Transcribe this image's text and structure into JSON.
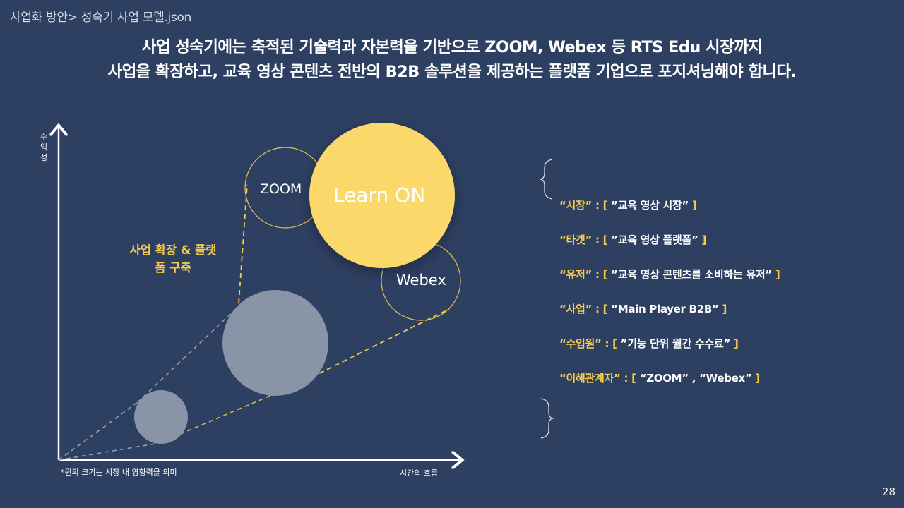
{
  "breadcrumb": "사업화 방안> 성숙기 사업 모델.json",
  "headline": {
    "line1": "사업 성숙기에는 축적된 기술력과 자본력을 기반으로 ZOOM, Webex 등 RTS Edu 시장까지",
    "line2": "사업을 확장하고, 교육 영상 콘텐츠 전반의 B2B 솔루션을 제공하는 플랫폼 기업으로 포지셔닝해야 합니다."
  },
  "chart": {
    "y_axis_label": "수익성",
    "x_axis_label": "시간의 흐름",
    "footnote": "*원의 크기는 시장 내 영향력을 의미",
    "expansion_label": "사업 확장 & 플랫폼 구축",
    "bubbles": {
      "zoom": "ZOOM",
      "learn_on": "Learn ON",
      "webex": "Webex"
    },
    "colors": {
      "accent": "#f7cb4d",
      "gray_bubble": "#8994a7",
      "background": "#2e4062"
    }
  },
  "json_panel": {
    "open_brace": "{",
    "close_brace": "}",
    "rows": [
      {
        "key": "“시장” : [",
        "value": " ”교육 영상 시장” ",
        "end": "]"
      },
      {
        "key": "“타겟” : [",
        "value": " ”교육 영상 플랫폼” ",
        "end": "]"
      },
      {
        "key": "“유저” : [",
        "value": " ”교육 영상  콘텐츠를 소비하는 유저” ",
        "end": "]"
      },
      {
        "key": "“사업” : [",
        "value": " ”Main Player B2B” ",
        "end": "]"
      },
      {
        "key": "“수입원” : [",
        "value": " ”기능 단위 월간 수수료” ",
        "end": " ]"
      },
      {
        "key": "“이해관계자” : [",
        "value": " “ZOOM” , “Webex” ",
        "end": "]"
      }
    ]
  },
  "page_number": "28"
}
